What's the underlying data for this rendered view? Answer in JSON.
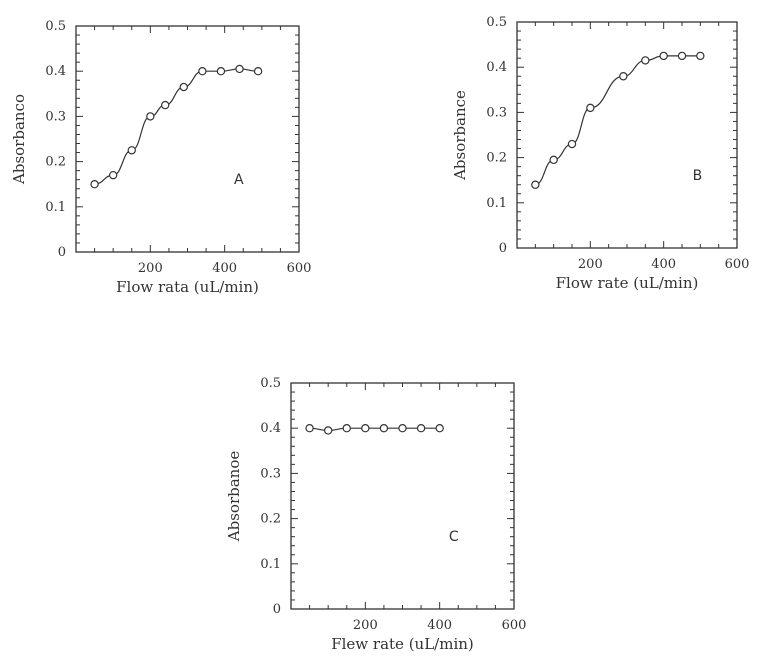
{
  "figure": {
    "background": "#ffffff",
    "ink": "#333333"
  },
  "chart_data": [
    {
      "type": "line",
      "panel_label": "A",
      "xlabel": "Flow rata (uL/min)",
      "ylabel": "Absorbanco",
      "xlim": [
        0,
        600
      ],
      "ylim": [
        0,
        0.5
      ],
      "xticks": [
        {
          "value": 200,
          "label": "200"
        },
        {
          "value": 400,
          "label": "400"
        },
        {
          "value": 600,
          "label": "600"
        }
      ],
      "yticks": [
        {
          "value": 0,
          "label": "0"
        },
        {
          "value": 0.1,
          "label": "0.1"
        },
        {
          "value": 0.2,
          "label": "0.2"
        },
        {
          "value": 0.3,
          "label": "0.3"
        },
        {
          "value": 0.4,
          "label": "0.4"
        },
        {
          "value": 0.5,
          "label": "0.5"
        }
      ],
      "marker": "open-circle",
      "grid": false,
      "series": [
        {
          "x": [
            50,
            100,
            150,
            200,
            240,
            290,
            340,
            390,
            440,
            490
          ],
          "y": [
            0.15,
            0.17,
            0.225,
            0.3,
            0.325,
            0.365,
            0.4,
            0.4,
            0.405,
            0.4
          ]
        }
      ]
    },
    {
      "type": "line",
      "panel_label": "B",
      "xlabel": "Flow rate (uL/min)",
      "ylabel": "Absorbance",
      "xlim": [
        0,
        600
      ],
      "ylim": [
        0,
        0.5
      ],
      "xticks": [
        {
          "value": 200,
          "label": "200"
        },
        {
          "value": 400,
          "label": "400"
        },
        {
          "value": 600,
          "label": "600"
        }
      ],
      "yticks": [
        {
          "value": 0,
          "label": "0"
        },
        {
          "value": 0.1,
          "label": "0.1"
        },
        {
          "value": 0.2,
          "label": "0.2"
        },
        {
          "value": 0.3,
          "label": "0.3"
        },
        {
          "value": 0.4,
          "label": "0.4"
        },
        {
          "value": 0.5,
          "label": "0.5"
        }
      ],
      "marker": "open-circle",
      "grid": false,
      "series": [
        {
          "x": [
            50,
            100,
            150,
            200,
            290,
            350,
            400,
            450,
            500
          ],
          "y": [
            0.14,
            0.195,
            0.23,
            0.31,
            0.38,
            0.415,
            0.425,
            0.425,
            0.425
          ]
        }
      ]
    },
    {
      "type": "line",
      "panel_label": "C",
      "xlabel": "Flew rate (uL/min)",
      "ylabel": "Absorbanoe",
      "xlim": [
        0,
        600
      ],
      "ylim": [
        0,
        0.5
      ],
      "xticks": [
        {
          "value": 200,
          "label": "200"
        },
        {
          "value": 400,
          "label": "400"
        },
        {
          "value": 600,
          "label": "600"
        }
      ],
      "yticks": [
        {
          "value": 0,
          "label": "0"
        },
        {
          "value": 0.1,
          "label": "0.1"
        },
        {
          "value": 0.2,
          "label": "0.2"
        },
        {
          "value": 0.3,
          "label": "0.3"
        },
        {
          "value": 0.4,
          "label": "0.4"
        },
        {
          "value": 0.5,
          "label": "0.5"
        }
      ],
      "marker": "open-circle",
      "grid": false,
      "series": [
        {
          "x": [
            50,
            100,
            150,
            200,
            250,
            300,
            350,
            400
          ],
          "y": [
            0.4,
            0.395,
            0.4,
            0.4,
            0.4,
            0.4,
            0.4,
            0.4
          ]
        }
      ]
    }
  ]
}
